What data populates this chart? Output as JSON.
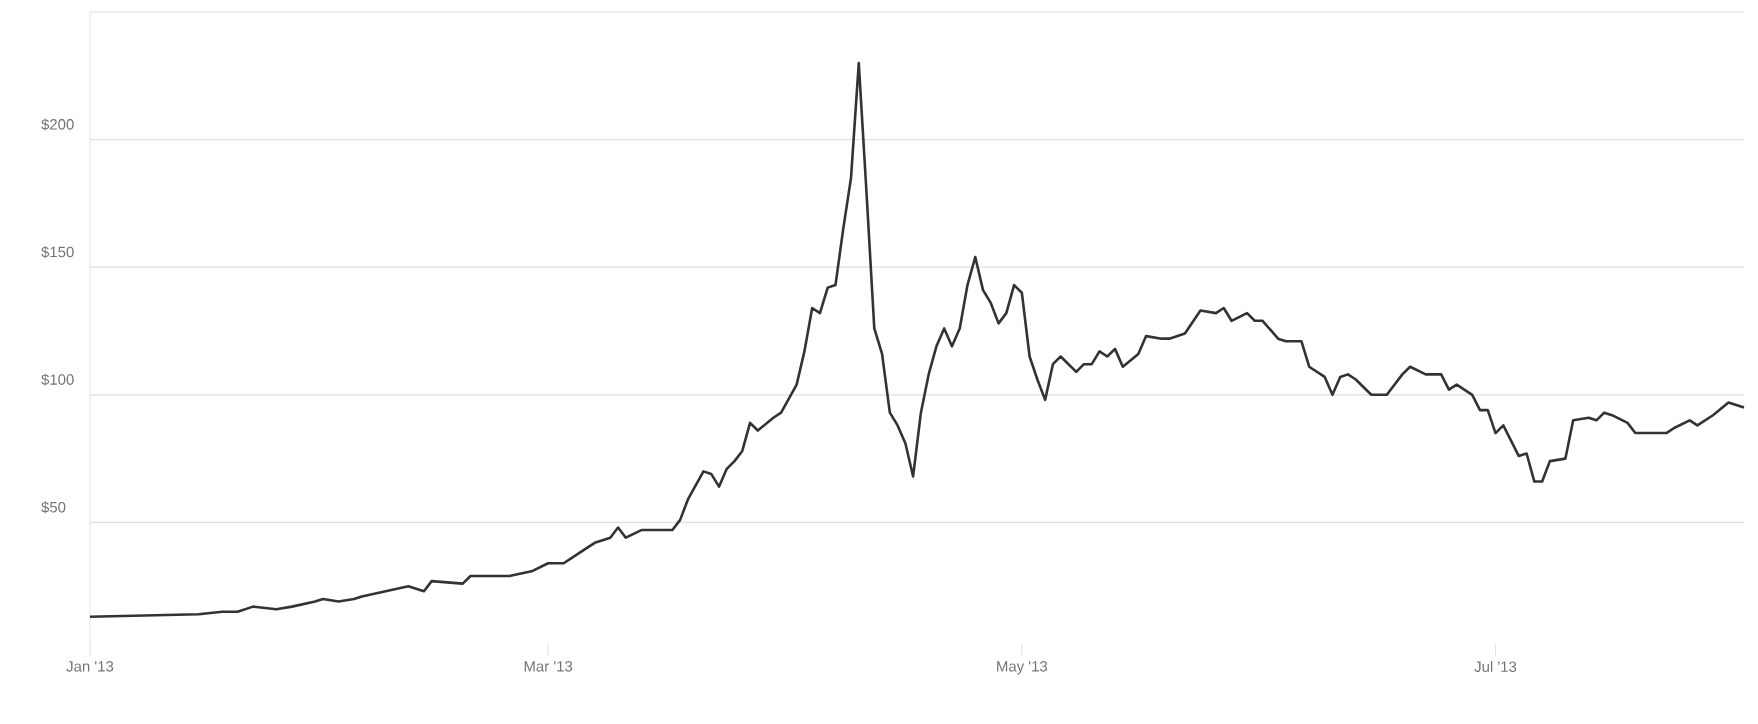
{
  "chart_data": {
    "type": "line",
    "color": "#333333",
    "grid": "y",
    "marker": "none",
    "line_style": "solid",
    "x": [
      "2013-01-01",
      "2013-01-15",
      "2013-01-18",
      "2013-01-20",
      "2013-01-22",
      "2013-01-25",
      "2013-01-27",
      "2013-01-30",
      "2013-01-31",
      "2013-02-02",
      "2013-02-04",
      "2013-02-05",
      "2013-02-08",
      "2013-02-11",
      "2013-02-12",
      "2013-02-13",
      "2013-02-14",
      "2013-02-18",
      "2013-02-19",
      "2013-02-23",
      "2013-02-24",
      "2013-02-27",
      "2013-03-01",
      "2013-03-03",
      "2013-03-04",
      "2013-03-06",
      "2013-03-07",
      "2013-03-09",
      "2013-03-10",
      "2013-03-11",
      "2013-03-13",
      "2013-03-17",
      "2013-03-18",
      "2013-03-19",
      "2013-03-21",
      "2013-03-22",
      "2013-03-23",
      "2013-03-24",
      "2013-03-25",
      "2013-03-26",
      "2013-03-27",
      "2013-03-28",
      "2013-03-30",
      "2013-03-31",
      "2013-04-02",
      "2013-04-03",
      "2013-04-04",
      "2013-04-05",
      "2013-04-06",
      "2013-04-07",
      "2013-04-08",
      "2013-04-09",
      "2013-04-10",
      "2013-04-11",
      "2013-04-12",
      "2013-04-13",
      "2013-04-14",
      "2013-04-15",
      "2013-04-16",
      "2013-04-17",
      "2013-04-18",
      "2013-04-19",
      "2013-04-20",
      "2013-04-21",
      "2013-04-22",
      "2013-04-23",
      "2013-04-24",
      "2013-04-25",
      "2013-04-26",
      "2013-04-27",
      "2013-04-28",
      "2013-04-29",
      "2013-04-30",
      "2013-05-01",
      "2013-05-02",
      "2013-05-03",
      "2013-05-04",
      "2013-05-05",
      "2013-05-06",
      "2013-05-08",
      "2013-05-09",
      "2013-05-10",
      "2013-05-11",
      "2013-05-12",
      "2013-05-13",
      "2013-05-14",
      "2013-05-16",
      "2013-05-17",
      "2013-05-19",
      "2013-05-20",
      "2013-05-22",
      "2013-05-24",
      "2013-05-26",
      "2013-05-27",
      "2013-05-28",
      "2013-05-30",
      "2013-05-31",
      "2013-06-01",
      "2013-06-03",
      "2013-06-04",
      "2013-06-06",
      "2013-06-07",
      "2013-06-09",
      "2013-06-10",
      "2013-06-11",
      "2013-06-12",
      "2013-06-13",
      "2013-06-15",
      "2013-06-17",
      "2013-06-19",
      "2013-06-20",
      "2013-06-22",
      "2013-06-24",
      "2013-06-25",
      "2013-06-26",
      "2013-06-28",
      "2013-06-29",
      "2013-06-30",
      "2013-07-01",
      "2013-07-02",
      "2013-07-03",
      "2013-07-04",
      "2013-07-05",
      "2013-07-06",
      "2013-07-07",
      "2013-07-08",
      "2013-07-10",
      "2013-07-11",
      "2013-07-13",
      "2013-07-14",
      "2013-07-15",
      "2013-07-16",
      "2013-07-18",
      "2013-07-19",
      "2013-07-23",
      "2013-07-24",
      "2013-07-26",
      "2013-07-27",
      "2013-07-29",
      "2013-07-31",
      "2013-08-02"
    ],
    "values": [
      13,
      14,
      15,
      15,
      17,
      16,
      17,
      19,
      20,
      19,
      20,
      21,
      23,
      25,
      24,
      23,
      27,
      26,
      29,
      29,
      29,
      31,
      34,
      34,
      36,
      40,
      42,
      44,
      48,
      44,
      47,
      47,
      51,
      59,
      70,
      69,
      64,
      71,
      74,
      78,
      89,
      86,
      91,
      93,
      104,
      117,
      134,
      132,
      142,
      143,
      165,
      185,
      230,
      179,
      126,
      116,
      93,
      88,
      81,
      68,
      93,
      108,
      119,
      126,
      119,
      126,
      143,
      154,
      141,
      136,
      128,
      132,
      143,
      140,
      115,
      106,
      98,
      112,
      115,
      109,
      112,
      112,
      117,
      115,
      118,
      111,
      116,
      123,
      122,
      122,
      124,
      133,
      132,
      134,
      129,
      132,
      129,
      129,
      122,
      121,
      121,
      111,
      107,
      100,
      107,
      108,
      106,
      100,
      100,
      108,
      111,
      108,
      108,
      102,
      104,
      100,
      94,
      94,
      85,
      88,
      82,
      76,
      77,
      66,
      66,
      74,
      75,
      90,
      91,
      90,
      93,
      92,
      89,
      85,
      85,
      87,
      90,
      88,
      92,
      97,
      95
    ],
    "xlim": [
      "2013-01-01",
      "2013-08-02"
    ],
    "xticks": [
      {
        "value": "2013-01-01",
        "label": "Jan '13"
      },
      {
        "value": "2013-03-01",
        "label": "Mar '13"
      },
      {
        "value": "2013-05-01",
        "label": "May '13"
      },
      {
        "value": "2013-07-01",
        "label": "Jul '13"
      }
    ],
    "ylim": [
      0,
      250
    ],
    "yticks": [
      {
        "value": 50,
        "label": "$50"
      },
      {
        "value": 100,
        "label": "$100"
      },
      {
        "value": 150,
        "label": "$150"
      },
      {
        "value": 200,
        "label": "$200"
      },
      {
        "value": 250,
        "label": null
      }
    ]
  }
}
